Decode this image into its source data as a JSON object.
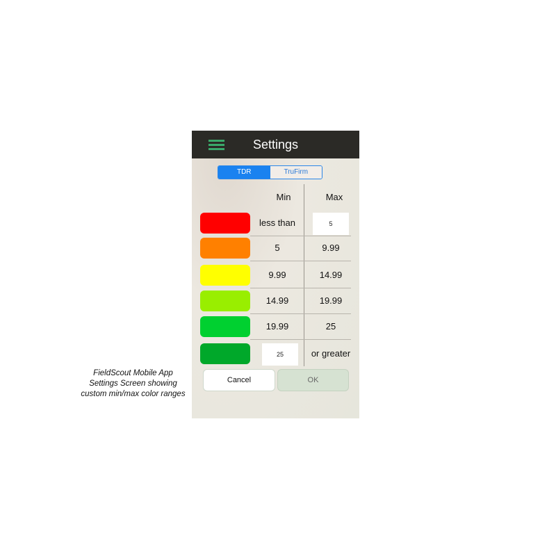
{
  "caption": [
    "FieldScout Mobile App",
    "Settings Screen showing",
    "custom min/max color ranges"
  ],
  "header": {
    "title": "Settings",
    "menu_icon": "hamburger-menu-icon"
  },
  "tabs": [
    {
      "label": "TDR",
      "selected": true
    },
    {
      "label": "TruFirm",
      "selected": false
    }
  ],
  "columns": {
    "min": "Min",
    "max": "Max"
  },
  "rows": [
    {
      "color": "#ff0000",
      "min": "less than",
      "max": "5",
      "max_editable": true
    },
    {
      "color": "#ff8000",
      "min": "5",
      "max": "9.99"
    },
    {
      "color": "#ffff00",
      "min": "9.99",
      "max": "14.99"
    },
    {
      "color": "#99ee00",
      "min": "14.99",
      "max": "19.99"
    },
    {
      "color": "#00d030",
      "min": "19.99",
      "max": "25"
    },
    {
      "color": "#00a82a",
      "min": "25",
      "max": "or greater",
      "min_editable": true
    }
  ],
  "buttons": {
    "cancel": "Cancel",
    "ok": "OK"
  }
}
